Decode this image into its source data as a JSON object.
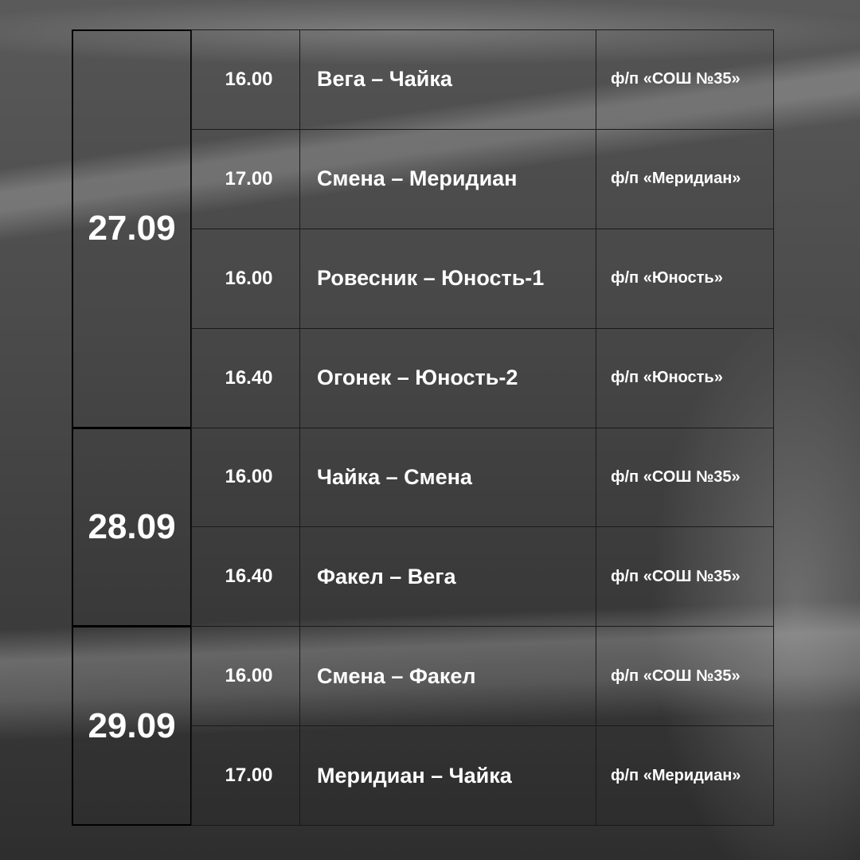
{
  "days": [
    {
      "date": "27.09",
      "matches": [
        {
          "time": "16.00",
          "match": "Вега – Чайка",
          "venue": "ф/п «СОШ №35»"
        },
        {
          "time": "17.00",
          "match": "Смена – Меридиан",
          "venue": "ф/п «Меридиан»"
        },
        {
          "time": "16.00",
          "match": "Ровесник – Юность-1",
          "venue": "ф/п «Юность»"
        },
        {
          "time": "16.40",
          "match": "Огонек – Юность-2",
          "venue": "ф/п «Юность»"
        }
      ]
    },
    {
      "date": "28.09",
      "matches": [
        {
          "time": "16.00",
          "match": "Чайка – Смена",
          "venue": "ф/п «СОШ №35»"
        },
        {
          "time": "16.40",
          "match": "Факел – Вега",
          "venue": "ф/п «СОШ №35»"
        }
      ]
    },
    {
      "date": "29.09",
      "matches": [
        {
          "time": "16.00",
          "match": "Смена – Факел",
          "venue": "ф/п «СОШ №35»"
        },
        {
          "time": "17.00",
          "match": "Меридиан – Чайка",
          "venue": "ф/п «Меридиан»"
        }
      ]
    }
  ]
}
